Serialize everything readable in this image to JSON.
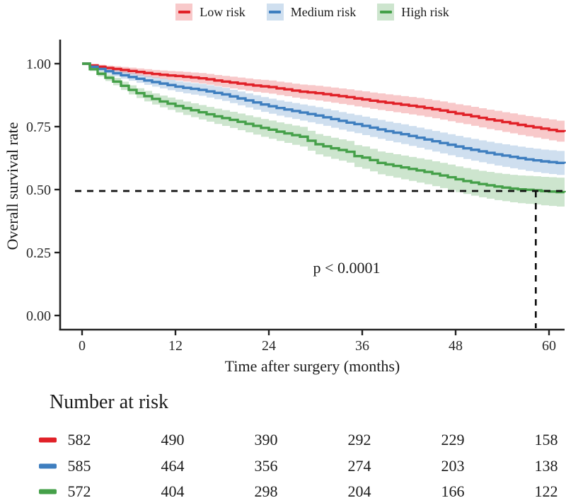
{
  "chart_data": {
    "type": "line",
    "subtype": "kaplan-meier-survival",
    "xlabel": "Time after surgery (months)",
    "ylabel": "Overall survival rate",
    "annotation": "p < 0.0001",
    "xlim": [
      0,
      62
    ],
    "ylim": [
      0,
      1
    ],
    "grid": false,
    "legend_position": "top",
    "xticks": [
      {
        "value": 0,
        "label": "0"
      },
      {
        "value": 12,
        "label": "12"
      },
      {
        "value": 24,
        "label": "24"
      },
      {
        "value": 36,
        "label": "36"
      },
      {
        "value": 48,
        "label": "48"
      },
      {
        "value": 60,
        "label": "60"
      }
    ],
    "yticks": [
      {
        "value": 0.0,
        "label": "0.00"
      },
      {
        "value": 0.25,
        "label": "0.25"
      },
      {
        "value": 0.5,
        "label": "0.50"
      },
      {
        "value": 0.75,
        "label": "0.75"
      },
      {
        "value": 1.0,
        "label": "1.00"
      }
    ],
    "reference_lines": {
      "horizontal_y": 0.5,
      "vertical_x": 58.3,
      "style": "dashed",
      "color": "#111111"
    },
    "series": [
      {
        "name": "Low risk",
        "color": "#E12128",
        "band_color": "rgba(228,40,45,0.25)",
        "ci_halfwidth_end": 0.042,
        "points": [
          [
            0,
            1
          ],
          [
            1,
            0.993
          ],
          [
            2,
            0.988
          ],
          [
            3,
            0.983
          ],
          [
            4,
            0.979
          ],
          [
            5,
            0.975
          ],
          [
            6,
            0.971
          ],
          [
            7,
            0.967
          ],
          [
            8,
            0.963
          ],
          [
            9,
            0.959
          ],
          [
            10,
            0.956
          ],
          [
            11,
            0.953
          ],
          [
            12,
            0.951
          ],
          [
            13,
            0.948
          ],
          [
            14,
            0.945
          ],
          [
            15,
            0.942
          ],
          [
            16,
            0.938
          ],
          [
            17,
            0.933
          ],
          [
            18,
            0.929
          ],
          [
            19,
            0.925
          ],
          [
            20,
            0.921
          ],
          [
            21,
            0.917
          ],
          [
            22,
            0.913
          ],
          [
            23,
            0.91
          ],
          [
            24,
            0.907
          ],
          [
            25,
            0.902
          ],
          [
            26,
            0.898
          ],
          [
            27,
            0.893
          ],
          [
            28,
            0.889
          ],
          [
            29,
            0.886
          ],
          [
            30,
            0.883
          ],
          [
            31,
            0.879
          ],
          [
            32,
            0.875
          ],
          [
            33,
            0.871
          ],
          [
            34,
            0.867
          ],
          [
            35,
            0.862
          ],
          [
            36,
            0.858
          ],
          [
            37,
            0.853
          ],
          [
            38,
            0.849
          ],
          [
            39,
            0.845
          ],
          [
            40,
            0.841
          ],
          [
            41,
            0.837
          ],
          [
            42,
            0.833
          ],
          [
            43,
            0.829
          ],
          [
            44,
            0.824
          ],
          [
            45,
            0.819
          ],
          [
            46,
            0.814
          ],
          [
            47,
            0.808
          ],
          [
            48,
            0.802
          ],
          [
            49,
            0.797
          ],
          [
            50,
            0.791
          ],
          [
            51,
            0.785
          ],
          [
            52,
            0.779
          ],
          [
            53,
            0.774
          ],
          [
            54,
            0.768
          ],
          [
            55,
            0.763
          ],
          [
            56,
            0.757
          ],
          [
            57,
            0.752
          ],
          [
            58,
            0.747
          ],
          [
            59,
            0.742
          ],
          [
            60,
            0.737
          ],
          [
            61,
            0.732
          ],
          [
            62,
            0.73
          ]
        ]
      },
      {
        "name": "Medium risk",
        "color": "#3E7EBF",
        "band_color": "rgba(62,126,191,0.25)",
        "ci_halfwidth_end": 0.048,
        "points": [
          [
            0,
            1
          ],
          [
            1,
            0.988
          ],
          [
            2,
            0.979
          ],
          [
            3,
            0.97
          ],
          [
            4,
            0.962
          ],
          [
            5,
            0.954
          ],
          [
            6,
            0.947
          ],
          [
            7,
            0.94
          ],
          [
            8,
            0.933
          ],
          [
            9,
            0.927
          ],
          [
            10,
            0.921
          ],
          [
            11,
            0.915
          ],
          [
            12,
            0.909
          ],
          [
            13,
            0.904
          ],
          [
            14,
            0.9
          ],
          [
            15,
            0.896
          ],
          [
            16,
            0.89
          ],
          [
            17,
            0.884
          ],
          [
            18,
            0.878
          ],
          [
            19,
            0.87
          ],
          [
            20,
            0.862
          ],
          [
            21,
            0.854
          ],
          [
            22,
            0.846
          ],
          [
            23,
            0.838
          ],
          [
            24,
            0.831
          ],
          [
            25,
            0.824
          ],
          [
            26,
            0.818
          ],
          [
            27,
            0.812
          ],
          [
            28,
            0.806
          ],
          [
            29,
            0.8
          ],
          [
            30,
            0.794
          ],
          [
            31,
            0.787
          ],
          [
            32,
            0.78
          ],
          [
            33,
            0.773
          ],
          [
            34,
            0.766
          ],
          [
            35,
            0.76
          ],
          [
            36,
            0.753
          ],
          [
            37,
            0.746
          ],
          [
            38,
            0.739
          ],
          [
            39,
            0.732
          ],
          [
            40,
            0.726
          ],
          [
            41,
            0.72
          ],
          [
            42,
            0.713
          ],
          [
            43,
            0.706
          ],
          [
            44,
            0.699
          ],
          [
            45,
            0.692
          ],
          [
            46,
            0.685
          ],
          [
            47,
            0.678
          ],
          [
            48,
            0.671
          ],
          [
            49,
            0.664
          ],
          [
            50,
            0.658
          ],
          [
            51,
            0.652
          ],
          [
            52,
            0.646
          ],
          [
            53,
            0.64
          ],
          [
            54,
            0.635
          ],
          [
            55,
            0.63
          ],
          [
            56,
            0.625
          ],
          [
            57,
            0.62
          ],
          [
            58,
            0.616
          ],
          [
            59,
            0.612
          ],
          [
            60,
            0.609
          ],
          [
            61,
            0.606
          ],
          [
            62,
            0.604
          ]
        ]
      },
      {
        "name": "High risk",
        "color": "#45A049",
        "band_color": "rgba(69,160,73,0.27)",
        "ci_halfwidth_end": 0.058,
        "points": [
          [
            0,
            1
          ],
          [
            1,
            0.978
          ],
          [
            2,
            0.96
          ],
          [
            3,
            0.944
          ],
          [
            4,
            0.929
          ],
          [
            5,
            0.912
          ],
          [
            6,
            0.896
          ],
          [
            7,
            0.883
          ],
          [
            8,
            0.871
          ],
          [
            9,
            0.86
          ],
          [
            10,
            0.85
          ],
          [
            11,
            0.841
          ],
          [
            12,
            0.832
          ],
          [
            13,
            0.823
          ],
          [
            14,
            0.815
          ],
          [
            15,
            0.807
          ],
          [
            16,
            0.799
          ],
          [
            17,
            0.791
          ],
          [
            18,
            0.784
          ],
          [
            19,
            0.777
          ],
          [
            20,
            0.769
          ],
          [
            21,
            0.761
          ],
          [
            22,
            0.753
          ],
          [
            23,
            0.745
          ],
          [
            24,
            0.738
          ],
          [
            25,
            0.73
          ],
          [
            26,
            0.723
          ],
          [
            27,
            0.716
          ],
          [
            28,
            0.71
          ],
          [
            29,
            0.694
          ],
          [
            30,
            0.68
          ],
          [
            31,
            0.672
          ],
          [
            32,
            0.664
          ],
          [
            33,
            0.657
          ],
          [
            34,
            0.65
          ],
          [
            35,
            0.633
          ],
          [
            36,
            0.627
          ],
          [
            37,
            0.617
          ],
          [
            38,
            0.606
          ],
          [
            39,
            0.6
          ],
          [
            40,
            0.594
          ],
          [
            41,
            0.588
          ],
          [
            42,
            0.582
          ],
          [
            43,
            0.576
          ],
          [
            44,
            0.57
          ],
          [
            45,
            0.563
          ],
          [
            46,
            0.556
          ],
          [
            47,
            0.549
          ],
          [
            48,
            0.541
          ],
          [
            49,
            0.534
          ],
          [
            50,
            0.528
          ],
          [
            51,
            0.522
          ],
          [
            52,
            0.517
          ],
          [
            53,
            0.512
          ],
          [
            54,
            0.508
          ],
          [
            55,
            0.504
          ],
          [
            56,
            0.501
          ],
          [
            57,
            0.499
          ],
          [
            58,
            0.497
          ],
          [
            59,
            0.494
          ],
          [
            60,
            0.492
          ],
          [
            61,
            0.49
          ],
          [
            62,
            0.489
          ]
        ]
      }
    ],
    "risk_table": {
      "title": "Number at risk",
      "times": [
        0,
        12,
        24,
        36,
        48,
        60
      ],
      "rows": [
        {
          "name": "Low risk",
          "color": "#E12128",
          "values": [
            582,
            490,
            390,
            292,
            229,
            158
          ]
        },
        {
          "name": "Medium risk",
          "color": "#3E7EBF",
          "values": [
            585,
            464,
            356,
            274,
            203,
            138
          ]
        },
        {
          "name": "High risk",
          "color": "#45A049",
          "values": [
            572,
            404,
            298,
            204,
            166,
            122
          ]
        }
      ]
    }
  }
}
